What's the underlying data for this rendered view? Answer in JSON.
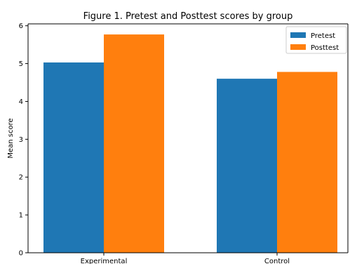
{
  "chart_data": {
    "type": "bar",
    "title": "Figure 1. Pretest and Posttest scores by group",
    "xlabel": "",
    "ylabel": "Mean score",
    "categories": [
      "Experimental",
      "Control"
    ],
    "series": [
      {
        "name": "Pretest",
        "values": [
          5.03,
          4.6
        ],
        "color": "#1f77b4"
      },
      {
        "name": "Posttest",
        "values": [
          5.77,
          4.78
        ],
        "color": "#ff7f0e"
      }
    ],
    "ylim": [
      0,
      6.05
    ],
    "yticks": [
      0,
      1,
      2,
      3,
      4,
      5,
      6
    ],
    "grid": false,
    "legend_position": "top-right"
  }
}
